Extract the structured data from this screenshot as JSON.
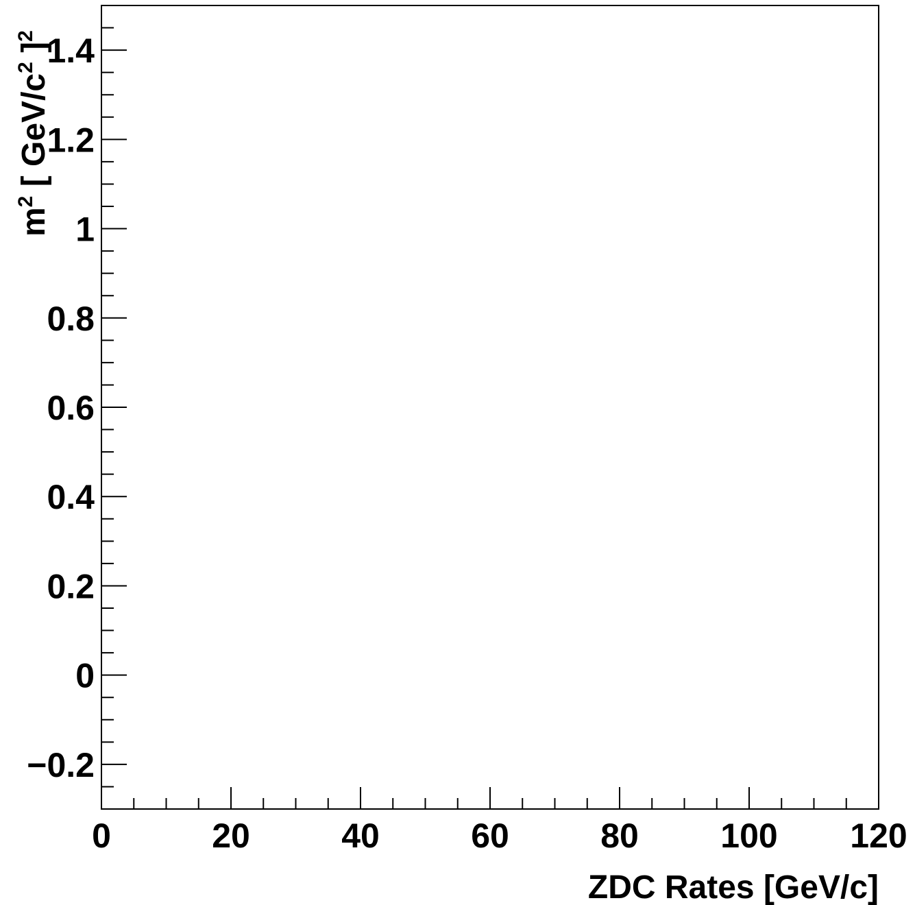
{
  "chart_data": {
    "type": "scatter",
    "title": "",
    "xlabel": "ZDC Rates [GeV/c]",
    "ylabel": {
      "m": "m",
      "m_sup": "2",
      "open": " [ GeV/c",
      "c_sup": "2",
      "close": " ]",
      "close_sup": "2"
    },
    "xlim": [
      0,
      120
    ],
    "ylim": [
      -0.3,
      1.5
    ],
    "x_ticks": [
      0,
      20,
      40,
      60,
      80,
      100,
      120
    ],
    "x_tick_labels": [
      "0",
      "20",
      "40",
      "60",
      "80",
      "100",
      "120"
    ],
    "y_ticks": [
      -0.2,
      0,
      0.2,
      0.4,
      0.6,
      0.8,
      1,
      1.2,
      1.4
    ],
    "y_tick_labels": [
      "−0.2",
      "0",
      "0.2",
      "0.4",
      "0.6",
      "0.8",
      "1",
      "1.2",
      "1.4"
    ],
    "x_minor_step": 5,
    "y_minor_step": 0.05,
    "grid": false,
    "series": [
      {
        "points": []
      }
    ]
  }
}
